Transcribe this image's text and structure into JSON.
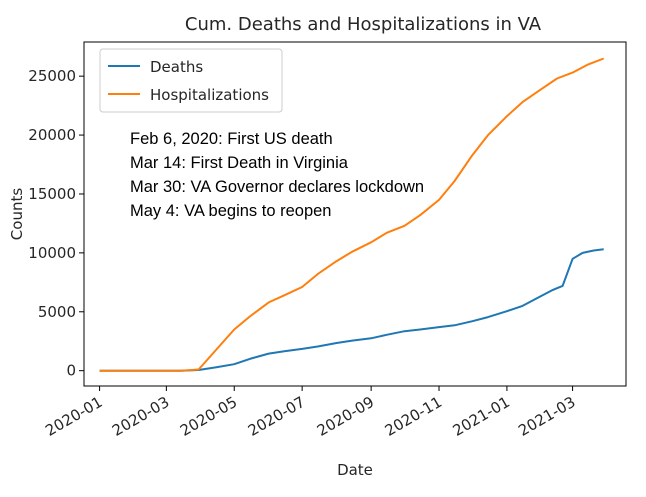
{
  "chart_data": {
    "type": "line",
    "title": "Cum. Deaths and Hospitalizations in VA",
    "xlabel": "Date",
    "ylabel": "Counts",
    "xlim": [
      "2019-12-18",
      "2021-04-18"
    ],
    "ylim": [
      -1300,
      27900
    ],
    "x_ticks": [
      "2020-01",
      "2020-03",
      "2020-05",
      "2020-07",
      "2020-09",
      "2020-11",
      "2021-01",
      "2021-03"
    ],
    "y_ticks": [
      0,
      5000,
      10000,
      15000,
      20000,
      25000
    ],
    "grid": false,
    "legend_position": "upper-left",
    "colors": {
      "Deaths": "#1f77b4",
      "Hospitalizations": "#ff7f0e"
    },
    "annotations": [
      "Feb 6, 2020:  First US death",
      "Mar 14:  First Death in Virginia",
      "Mar 30:  VA Governor declares lockdown",
      "May 4:  VA begins to reopen"
    ],
    "series": [
      {
        "name": "Deaths",
        "x": [
          "2020-01-01",
          "2020-02-01",
          "2020-03-01",
          "2020-03-14",
          "2020-03-30",
          "2020-04-15",
          "2020-05-01",
          "2020-05-15",
          "2020-06-01",
          "2020-06-15",
          "2020-07-01",
          "2020-07-15",
          "2020-08-01",
          "2020-08-15",
          "2020-09-01",
          "2020-09-15",
          "2020-10-01",
          "2020-10-15",
          "2020-11-01",
          "2020-11-15",
          "2020-12-01",
          "2020-12-15",
          "2021-01-01",
          "2021-01-15",
          "2021-02-01",
          "2021-02-10",
          "2021-02-15",
          "2021-02-20",
          "2021-03-01",
          "2021-03-10",
          "2021-03-20",
          "2021-03-29"
        ],
        "y": [
          0,
          0,
          0,
          2,
          60,
          300,
          550,
          1000,
          1450,
          1650,
          1850,
          2050,
          2350,
          2550,
          2750,
          3050,
          3350,
          3500,
          3700,
          3850,
          4200,
          4550,
          5050,
          5500,
          6350,
          6800,
          7000,
          7200,
          9500,
          10000,
          10200,
          10300
        ]
      },
      {
        "name": "Hospitalizations",
        "x": [
          "2020-01-01",
          "2020-02-01",
          "2020-03-01",
          "2020-03-14",
          "2020-03-30",
          "2020-04-15",
          "2020-05-01",
          "2020-05-15",
          "2020-06-01",
          "2020-06-15",
          "2020-07-01",
          "2020-07-15",
          "2020-08-01",
          "2020-08-15",
          "2020-09-01",
          "2020-09-15",
          "2020-10-01",
          "2020-10-15",
          "2020-11-01",
          "2020-11-15",
          "2020-12-01",
          "2020-12-15",
          "2021-01-01",
          "2021-01-15",
          "2021-02-01",
          "2021-02-15",
          "2021-03-01",
          "2021-03-15",
          "2021-03-29"
        ],
        "y": [
          0,
          0,
          0,
          0,
          100,
          1800,
          3500,
          4600,
          5800,
          6400,
          7100,
          8200,
          9300,
          10100,
          10900,
          11700,
          12300,
          13200,
          14500,
          16100,
          18300,
          20000,
          21600,
          22800,
          23900,
          24800,
          25300,
          26000,
          26500
        ]
      }
    ]
  }
}
